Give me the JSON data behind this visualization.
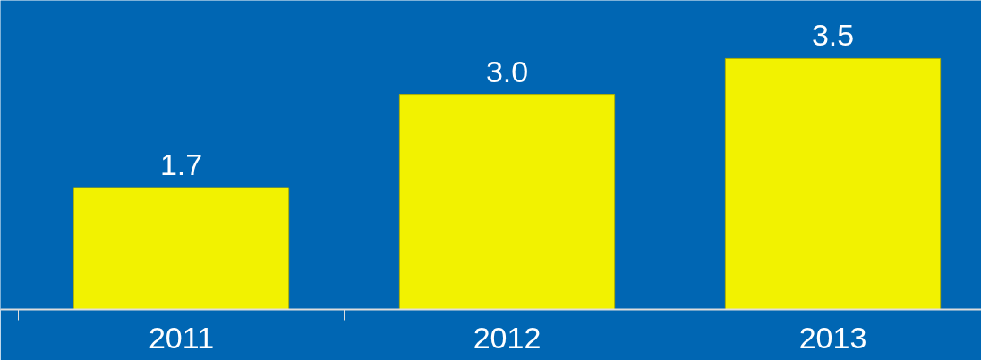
{
  "chart_data": {
    "type": "bar",
    "categories": [
      "2011",
      "2012",
      "2013"
    ],
    "values": [
      1.7,
      3.0,
      3.5
    ],
    "color": "#f2f200",
    "value_labels": [
      "1.7",
      "3.0",
      "3.5"
    ]
  }
}
